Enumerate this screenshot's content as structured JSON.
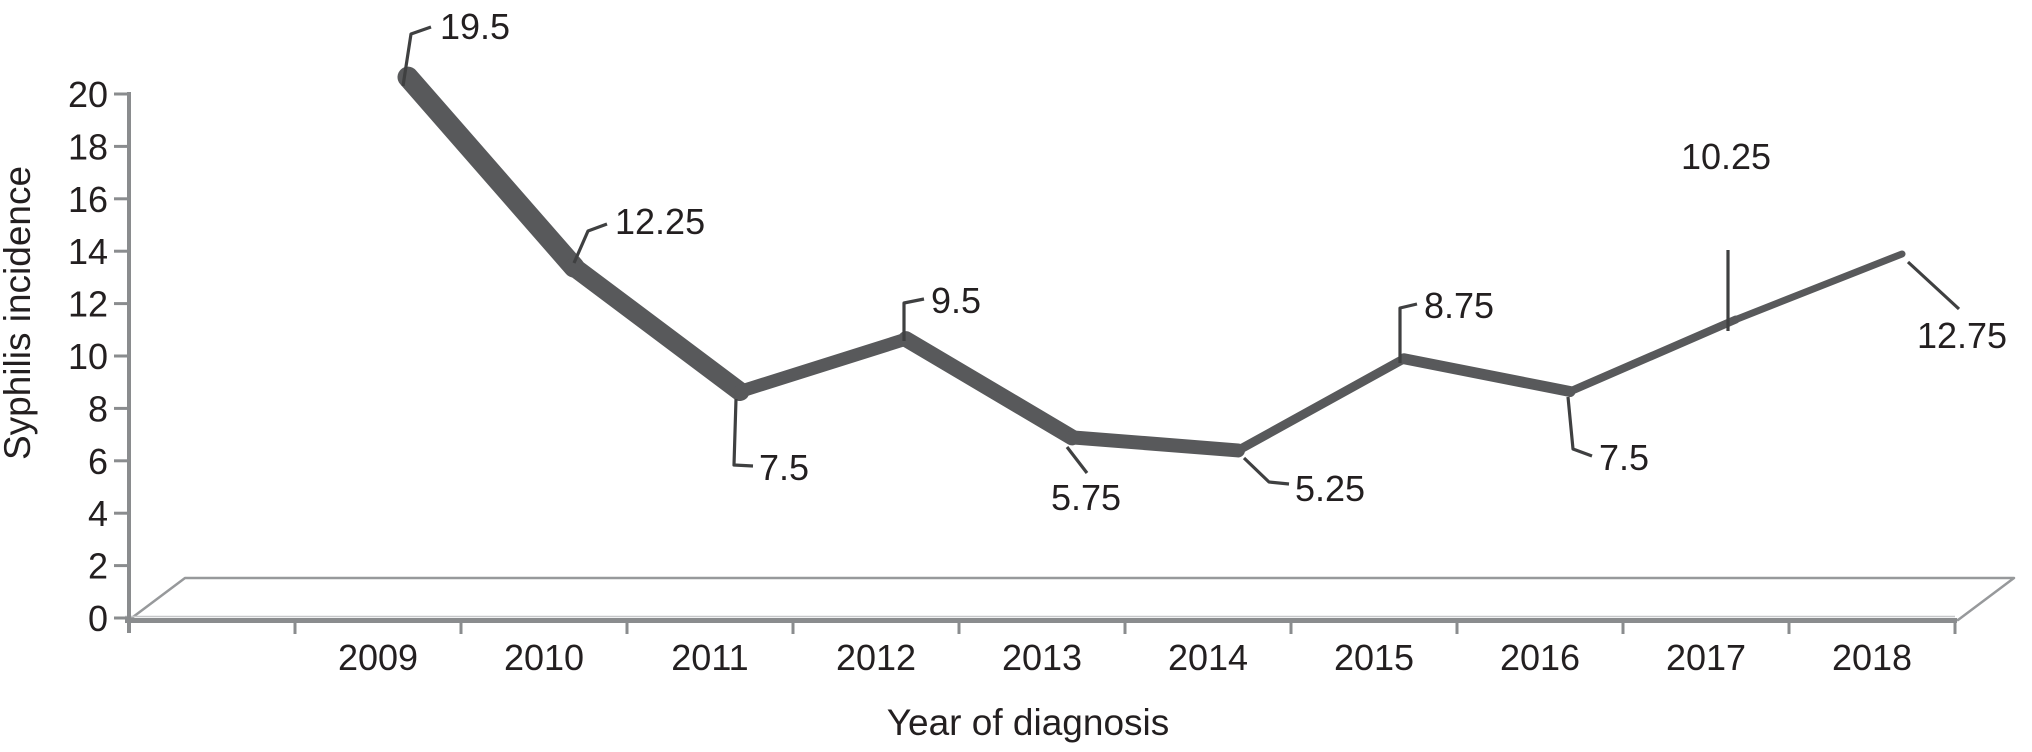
{
  "chart_data": {
    "type": "line",
    "title": "",
    "xlabel": "Year of diagnosis",
    "ylabel": "Syphilis incidence",
    "categories": [
      "2009",
      "2010",
      "2011",
      "2012",
      "2013",
      "2014",
      "2015",
      "2016",
      "2017",
      "2018"
    ],
    "values": [
      19.5,
      12.25,
      7.5,
      9.5,
      5.75,
      5.25,
      8.75,
      7.5,
      10.25,
      12.75
    ],
    "point_labels": [
      "19.5",
      "12.25",
      "7.5",
      "9.5",
      "5.75",
      "5.25",
      "8.75",
      "7.5",
      "10.25",
      "12.75"
    ],
    "yticks": [
      0,
      2,
      4,
      6,
      8,
      10,
      12,
      14,
      16,
      18,
      20
    ],
    "ylim": [
      0,
      20
    ],
    "grid": false,
    "legend": false,
    "style": "3d-floor-line",
    "line_color": "#58595b",
    "leader_color": "#3f4041",
    "axis_color": "#8a8c8e",
    "floor_color": "#97999b",
    "text_color": "#231f20"
  }
}
